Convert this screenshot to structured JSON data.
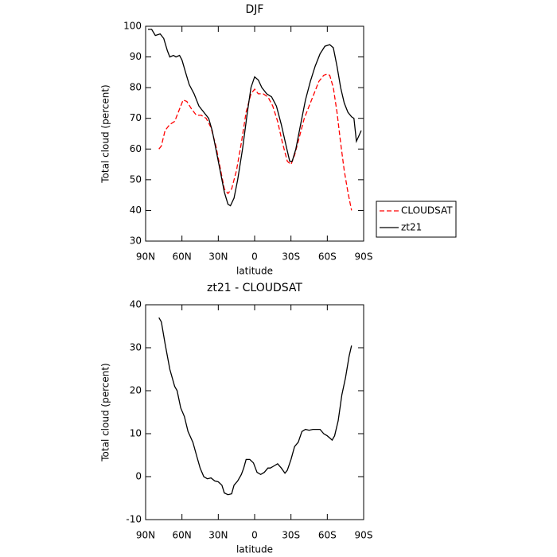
{
  "chart_data": [
    {
      "type": "line",
      "title": "DJF",
      "xlabel": "latitude",
      "ylabel": "Total cloud (percent)",
      "xlim": [
        90,
        -90
      ],
      "xticks": [
        {
          "value": 90,
          "label": "90N"
        },
        {
          "value": 60,
          "label": "60N"
        },
        {
          "value": 30,
          "label": "30N"
        },
        0,
        {
          "value": -30,
          "label": "30S"
        },
        {
          "value": -60,
          "label": "60S"
        },
        {
          "value": -90,
          "label": "90S"
        }
      ],
      "ylim": [
        30,
        100
      ],
      "yticks": [
        30,
        40,
        50,
        60,
        70,
        80,
        90,
        100
      ],
      "legend": "right",
      "series": [
        {
          "name": "CLOUDSAT",
          "color": "#ff0000",
          "style": "dashed",
          "x": [
            79,
            77,
            74,
            70,
            66,
            62,
            59,
            56,
            52,
            48,
            44,
            40,
            36,
            32,
            28,
            25,
            22,
            19,
            15,
            11,
            7,
            3,
            0,
            -3,
            -7,
            -11,
            -15,
            -19,
            -23,
            -27,
            -30,
            -33,
            -37,
            -41,
            -45,
            -49,
            -53,
            -57,
            -60,
            -62,
            -65,
            -68,
            -71,
            -74,
            -77,
            -80
          ],
          "values": [
            60,
            61,
            66,
            68,
            69,
            73,
            76,
            75.5,
            73,
            71,
            71,
            70,
            67,
            61,
            53,
            47,
            45.5,
            47,
            53,
            62,
            72,
            78,
            79.5,
            78,
            78,
            77,
            74,
            69,
            62,
            56,
            55,
            58,
            64,
            70,
            74,
            78,
            82,
            84,
            84.5,
            84,
            80,
            72,
            62,
            53,
            46,
            40
          ]
        },
        {
          "name": "zt21",
          "color": "#000000",
          "style": "solid",
          "x": [
            88,
            85,
            82,
            78,
            75,
            72,
            70,
            67,
            65,
            62,
            60,
            57,
            54,
            50,
            46,
            42,
            38,
            35,
            32,
            28,
            25,
            22,
            20,
            17,
            14,
            10,
            6,
            3,
            0,
            -3,
            -6,
            -10,
            -14,
            -18,
            -22,
            -26,
            -29,
            -31,
            -34,
            -38,
            -42,
            -46,
            -50,
            -54,
            -58,
            -62,
            -65,
            -68,
            -71,
            -74,
            -77,
            -80,
            -82,
            -84,
            -88
          ],
          "values": [
            99,
            99,
            97,
            97.5,
            96,
            92,
            90,
            90.5,
            90,
            90.5,
            89,
            85,
            81,
            78,
            74,
            72,
            70,
            66,
            60,
            52,
            46,
            42,
            41.5,
            44,
            50,
            60,
            72,
            80,
            83.5,
            82.5,
            80,
            78,
            77,
            74,
            68,
            61,
            56,
            56,
            60,
            68,
            76,
            82,
            87,
            91,
            93.5,
            94,
            93,
            87,
            80,
            75,
            72,
            70.5,
            70,
            62.5,
            66
          ]
        }
      ]
    },
    {
      "type": "line",
      "title": "zt21 - CLOUDSAT",
      "xlabel": "latitude",
      "ylabel": "Total cloud (percent)",
      "xlim": [
        90,
        -90
      ],
      "xticks": [
        {
          "value": 90,
          "label": "90N"
        },
        {
          "value": 60,
          "label": "60N"
        },
        {
          "value": 30,
          "label": "30N"
        },
        0,
        {
          "value": -30,
          "label": "30S"
        },
        {
          "value": -60,
          "label": "60S"
        },
        {
          "value": -90,
          "label": "90S"
        }
      ],
      "ylim": [
        -10,
        40
      ],
      "yticks": [
        -10,
        0,
        10,
        20,
        30,
        40
      ],
      "series": [
        {
          "color": "#000000",
          "style": "solid",
          "x": [
            79,
            77,
            74,
            70,
            66,
            64,
            61,
            58,
            55,
            51,
            48,
            45,
            42,
            39,
            36,
            33,
            30,
            27,
            25,
            22,
            19,
            17,
            14,
            11,
            9,
            7,
            4,
            1,
            -2,
            -5,
            -8,
            -11,
            -13,
            -16,
            -19,
            -22,
            -25,
            -27,
            -30,
            -33,
            -36,
            -39,
            -42,
            -45,
            -48,
            -51,
            -54,
            -57,
            -60,
            -62,
            -64,
            -66,
            -69,
            -72,
            -75,
            -78,
            -80
          ],
          "values": [
            37,
            36,
            31,
            25,
            21,
            20,
            16,
            14,
            10.5,
            8,
            5,
            2,
            0,
            -0.5,
            -0.3,
            -1,
            -1.2,
            -2,
            -3.8,
            -4.2,
            -4,
            -2,
            -1,
            0.5,
            2,
            4,
            4,
            3.2,
            1,
            0.5,
            1,
            2,
            2,
            2.5,
            3,
            2,
            0.8,
            1.5,
            4,
            7,
            8,
            10.5,
            11,
            10.8,
            11,
            11,
            11,
            10,
            9.5,
            9,
            8.5,
            9.5,
            13,
            19,
            23,
            28,
            30.5
          ]
        }
      ]
    }
  ]
}
